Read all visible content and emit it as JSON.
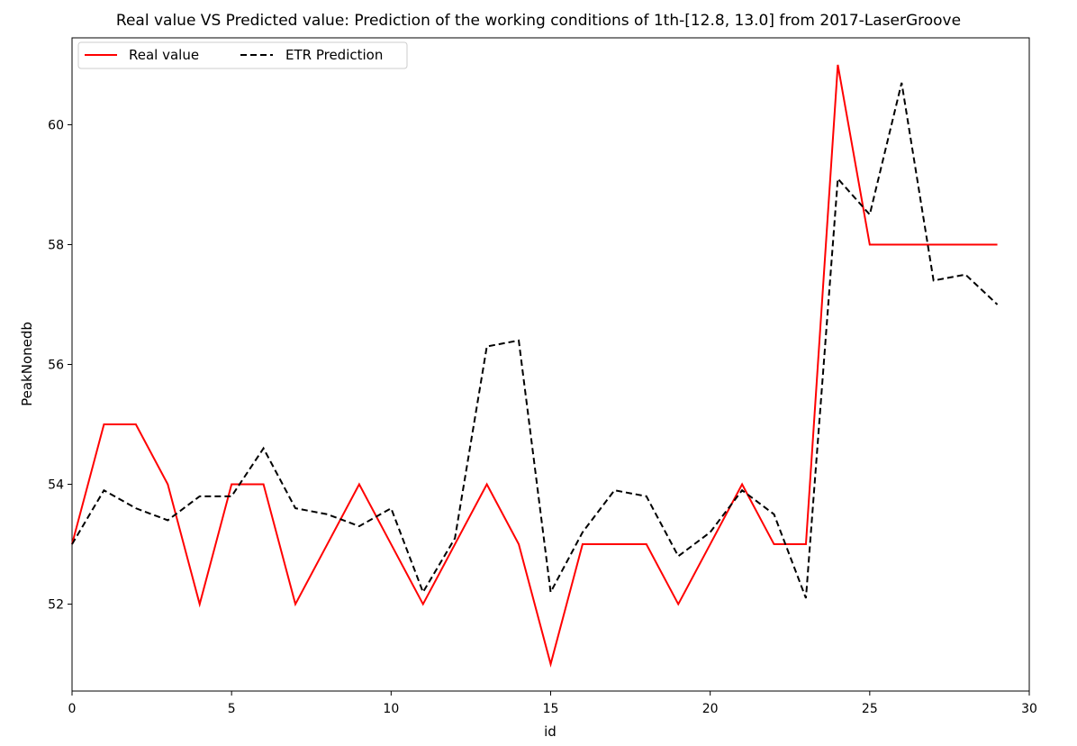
{
  "chart_data": {
    "type": "line",
    "title": "Real value VS Predicted value: Prediction of the working conditions of 1th-[12.8, 13.0] from 2017-LaserGroove",
    "xlabel": "id",
    "ylabel": "PeakNonedb",
    "xlim": [
      0,
      30
    ],
    "ylim": [
      50.55,
      61.45
    ],
    "xticks": [
      0,
      5,
      10,
      15,
      20,
      25,
      30
    ],
    "yticks": [
      52,
      54,
      56,
      58,
      60
    ],
    "grid": false,
    "legend_position": "upper-left",
    "x": [
      0,
      1,
      2,
      3,
      4,
      5,
      6,
      7,
      8,
      9,
      10,
      11,
      12,
      13,
      14,
      15,
      16,
      17,
      18,
      19,
      20,
      21,
      22,
      23,
      24,
      25,
      26,
      27,
      28,
      29
    ],
    "series": [
      {
        "name": "Real value",
        "color": "#ff0000",
        "dash": "solid",
        "values": [
          53,
          55,
          55,
          54,
          52,
          54,
          54,
          52,
          53,
          54,
          53,
          52,
          53,
          54,
          53,
          51,
          53,
          53,
          53,
          52,
          53,
          54,
          53,
          53,
          61,
          58,
          58,
          58,
          58,
          58
        ]
      },
      {
        "name": "ETR Prediction",
        "color": "#000000",
        "dash": "dashed",
        "values": [
          53.0,
          53.9,
          53.6,
          53.4,
          53.8,
          53.8,
          54.6,
          53.6,
          53.5,
          53.3,
          53.6,
          52.2,
          53.1,
          56.3,
          56.4,
          52.2,
          53.2,
          53.9,
          53.8,
          52.8,
          53.2,
          53.9,
          53.5,
          52.1,
          59.1,
          58.5,
          60.7,
          57.4,
          57.5,
          57.0
        ]
      }
    ]
  }
}
